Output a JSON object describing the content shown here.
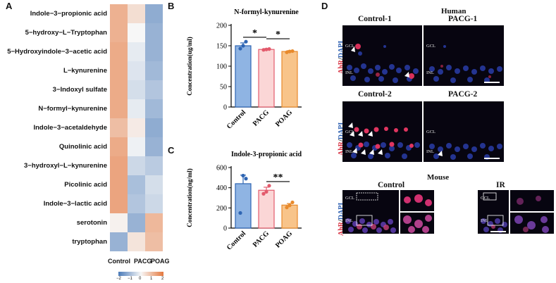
{
  "panels": {
    "a": "A",
    "b": "B",
    "c": "C",
    "d": "D"
  },
  "heatmap": {
    "rows": [
      "Indole−3−propionic acid",
      "5−hydroxy−L−Tryptophan",
      "5−Hydroxyindole−3−acetic acid",
      "L−kynurenine",
      "3−Indoxyl sulfate",
      "N−formyl−kynurenine",
      "Indole−3−acetaldehyde",
      "Quinolinic acid",
      "3−hydroxyl−L−kynurenine",
      "Picolinic acid",
      "Indole−3−lactic acid",
      "serotonin",
      "tryptophan"
    ],
    "columns": [
      "Control",
      "PACG",
      "POAG"
    ],
    "values": [
      [
        1.1,
        0.4,
        -1.2
      ],
      [
        1.1,
        0.0,
        -1.1
      ],
      [
        1.2,
        -0.2,
        -1.1
      ],
      [
        1.2,
        -0.3,
        -1.0
      ],
      [
        1.2,
        -0.4,
        -0.8
      ],
      [
        1.2,
        -0.2,
        -1.0
      ],
      [
        0.9,
        0.2,
        -1.2
      ],
      [
        1.2,
        -0.1,
        -1.1
      ],
      [
        1.3,
        -0.5,
        -0.7
      ],
      [
        1.3,
        -0.9,
        -0.4
      ],
      [
        1.3,
        -0.8,
        -0.5
      ],
      [
        0.1,
        -1.1,
        1.0
      ],
      [
        -1.1,
        0.3,
        0.9
      ]
    ],
    "scale": {
      "ticks": [
        "−2",
        "−1",
        "0",
        "1",
        "2"
      ],
      "min": -2,
      "max": 2,
      "low_color": "#4a7ab8",
      "mid_color": "#f7f7f7",
      "high_color": "#e4783e"
    }
  },
  "chart_data": [
    {
      "type": "bar",
      "title": "N-formyl-kynurenine",
      "ylabel": "Concentration(ug/ml)",
      "categories": [
        "Control",
        "PACG",
        "POAG"
      ],
      "values": [
        150,
        141,
        136
      ],
      "errors": [
        7,
        2,
        2
      ],
      "points": [
        [
          143,
          150,
          160
        ],
        [
          140,
          141,
          142
        ],
        [
          134,
          136,
          137
        ]
      ],
      "ylim": [
        0,
        200
      ],
      "yticks": [
        "0",
        "50",
        "100",
        "150",
        "200"
      ],
      "colors": [
        "#8fb4e3",
        "#fbd6d6",
        "#f8c48a"
      ],
      "edge_colors": [
        "#2e65b3",
        "#e35a6c",
        "#e88a2c"
      ],
      "significance": [
        {
          "from": 0,
          "to": 1,
          "label": "*"
        },
        {
          "from": 1,
          "to": 2,
          "label": "*"
        }
      ]
    },
    {
      "type": "bar",
      "title": "Indole-3-propionic acid",
      "ylabel": "Concentration(ng/ml)",
      "categories": [
        "Control",
        "PACG",
        "POAG"
      ],
      "values": [
        440,
        375,
        228
      ],
      "errors": [
        85,
        30,
        15
      ],
      "points": [
        [
          150,
          520,
          490
        ],
        [
          340,
          360,
          420
        ],
        [
          205,
          225,
          255
        ]
      ],
      "ylim": [
        0,
        600
      ],
      "yticks": [
        "0",
        "200",
        "400",
        "600"
      ],
      "colors": [
        "#8fb4e3",
        "#fbd6d6",
        "#f8c48a"
      ],
      "edge_colors": [
        "#2e65b3",
        "#e35a6c",
        "#e88a2c"
      ],
      "significance": [
        {
          "from": 1,
          "to": 2,
          "label": "**"
        }
      ]
    }
  ],
  "microscopy": {
    "species_top": "Human",
    "species_bottom": "Mouse",
    "stain_red": "AhR",
    "stain_sep": "/",
    "stain_blue": "DAPI",
    "titles": {
      "control1": "Control-1",
      "pacg1": "PACG-1",
      "control2": "Control-2",
      "pacg2": "PACG-2",
      "mouse_control": "Control",
      "mouse_ir": "IR"
    },
    "layer_gcl": "GCL",
    "layer_inl": "INL"
  }
}
